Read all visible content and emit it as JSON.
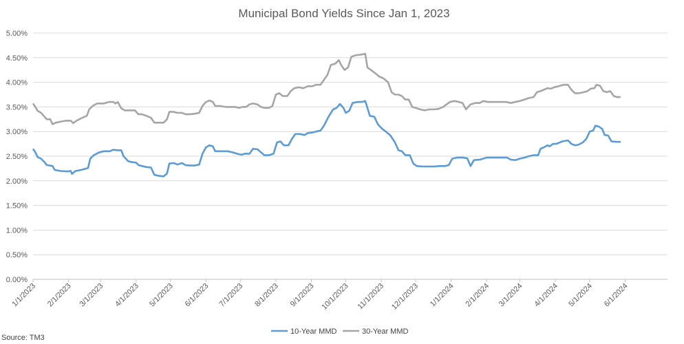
{
  "chart_data": {
    "type": "line",
    "title": "Municipal Bond Yields Since Jan 1, 2023",
    "source": "Source: TM3",
    "xlabel": "",
    "ylabel": "",
    "ylim": [
      0,
      5
    ],
    "y_ticks": [
      "0.00%",
      "0.50%",
      "1.00%",
      "1.50%",
      "2.00%",
      "2.50%",
      "3.00%",
      "3.50%",
      "4.00%",
      "4.50%",
      "5.00%"
    ],
    "x_ticks": [
      "1/1/2023",
      "2/1/2023",
      "3/1/2023",
      "4/1/2023",
      "5/1/2023",
      "6/1/2023",
      "7/1/2023",
      "8/1/2023",
      "9/1/2023",
      "10/1/2023",
      "11/1/2023",
      "12/1/2023",
      "1/1/2024",
      "2/1/2024",
      "3/1/2024",
      "4/1/2024",
      "5/1/2024",
      "6/1/2024"
    ],
    "x_range_days": [
      0,
      544
    ],
    "series": [
      {
        "name": "10-Year MMD",
        "color": "#5b9bd5",
        "points": [
          [
            0,
            2.65
          ],
          [
            2,
            2.58
          ],
          [
            4,
            2.48
          ],
          [
            7,
            2.45
          ],
          [
            10,
            2.38
          ],
          [
            12,
            2.32
          ],
          [
            17,
            2.3
          ],
          [
            19,
            2.22
          ],
          [
            24,
            2.2
          ],
          [
            30,
            2.19
          ],
          [
            33,
            2.2
          ],
          [
            34,
            2.14
          ],
          [
            37,
            2.2
          ],
          [
            42,
            2.22
          ],
          [
            45,
            2.24
          ],
          [
            48,
            2.26
          ],
          [
            50,
            2.45
          ],
          [
            53,
            2.52
          ],
          [
            58,
            2.58
          ],
          [
            62,
            2.6
          ],
          [
            67,
            2.6
          ],
          [
            70,
            2.63
          ],
          [
            74,
            2.62
          ],
          [
            77,
            2.62
          ],
          [
            79,
            2.5
          ],
          [
            83,
            2.4
          ],
          [
            86,
            2.38
          ],
          [
            90,
            2.37
          ],
          [
            92,
            2.32
          ],
          [
            95,
            2.3
          ],
          [
            99,
            2.28
          ],
          [
            103,
            2.27
          ],
          [
            106,
            2.12
          ],
          [
            110,
            2.1
          ],
          [
            114,
            2.09
          ],
          [
            117,
            2.15
          ],
          [
            119,
            2.35
          ],
          [
            123,
            2.36
          ],
          [
            126,
            2.33
          ],
          [
            130,
            2.36
          ],
          [
            133,
            2.32
          ],
          [
            137,
            2.31
          ],
          [
            141,
            2.31
          ],
          [
            145,
            2.33
          ],
          [
            148,
            2.55
          ],
          [
            151,
            2.68
          ],
          [
            154,
            2.72
          ],
          [
            157,
            2.7
          ],
          [
            159,
            2.6
          ],
          [
            163,
            2.6
          ],
          [
            167,
            2.6
          ],
          [
            170,
            2.6
          ],
          [
            174,
            2.58
          ],
          [
            178,
            2.55
          ],
          [
            182,
            2.53
          ],
          [
            185,
            2.55
          ],
          [
            189,
            2.55
          ],
          [
            192,
            2.65
          ],
          [
            196,
            2.64
          ],
          [
            199,
            2.58
          ],
          [
            202,
            2.52
          ],
          [
            206,
            2.52
          ],
          [
            210,
            2.55
          ],
          [
            213,
            2.78
          ],
          [
            216,
            2.8
          ],
          [
            219,
            2.72
          ],
          [
            223,
            2.72
          ],
          [
            226,
            2.85
          ],
          [
            229,
            2.95
          ],
          [
            233,
            2.95
          ],
          [
            237,
            2.93
          ],
          [
            240,
            2.97
          ],
          [
            244,
            2.98
          ],
          [
            247,
            3.0
          ],
          [
            251,
            3.02
          ],
          [
            254,
            3.12
          ],
          [
            258,
            3.3
          ],
          [
            262,
            3.45
          ],
          [
            265,
            3.48
          ],
          [
            268,
            3.56
          ],
          [
            271,
            3.48
          ],
          [
            273,
            3.38
          ],
          [
            276,
            3.42
          ],
          [
            279,
            3.58
          ],
          [
            283,
            3.6
          ],
          [
            287,
            3.6
          ],
          [
            290,
            3.62
          ],
          [
            291,
            3.55
          ],
          [
            294,
            3.32
          ],
          [
            298,
            3.3
          ],
          [
            301,
            3.15
          ],
          [
            305,
            3.05
          ],
          [
            308,
            3.0
          ],
          [
            312,
            2.92
          ],
          [
            316,
            2.78
          ],
          [
            319,
            2.62
          ],
          [
            322,
            2.6
          ],
          [
            325,
            2.52
          ],
          [
            329,
            2.52
          ],
          [
            332,
            2.35
          ],
          [
            335,
            2.3
          ],
          [
            340,
            2.29
          ],
          [
            345,
            2.29
          ],
          [
            350,
            2.29
          ],
          [
            355,
            2.3
          ],
          [
            360,
            2.3
          ],
          [
            363,
            2.32
          ],
          [
            366,
            2.45
          ],
          [
            370,
            2.47
          ],
          [
            375,
            2.47
          ],
          [
            379,
            2.46
          ],
          [
            382,
            2.3
          ],
          [
            385,
            2.42
          ],
          [
            390,
            2.43
          ],
          [
            393,
            2.45
          ],
          [
            396,
            2.47
          ],
          [
            401,
            2.47
          ],
          [
            406,
            2.47
          ],
          [
            411,
            2.47
          ],
          [
            414,
            2.47
          ],
          [
            417,
            2.43
          ],
          [
            421,
            2.42
          ],
          [
            425,
            2.45
          ],
          [
            429,
            2.47
          ],
          [
            433,
            2.5
          ],
          [
            437,
            2.52
          ],
          [
            441,
            2.52
          ],
          [
            443,
            2.65
          ],
          [
            446,
            2.68
          ],
          [
            449,
            2.72
          ],
          [
            451,
            2.7
          ],
          [
            454,
            2.75
          ],
          [
            457,
            2.75
          ],
          [
            459,
            2.77
          ],
          [
            462,
            2.8
          ],
          [
            467,
            2.82
          ],
          [
            470,
            2.75
          ],
          [
            473,
            2.72
          ],
          [
            476,
            2.73
          ],
          [
            480,
            2.78
          ],
          [
            483,
            2.85
          ],
          [
            486,
            3.0
          ],
          [
            489,
            3.02
          ],
          [
            491,
            3.12
          ],
          [
            494,
            3.1
          ],
          [
            497,
            3.05
          ],
          [
            499,
            2.93
          ],
          [
            502,
            2.92
          ],
          [
            505,
            2.8
          ],
          [
            510,
            2.79
          ],
          [
            513,
            2.79
          ]
        ]
      },
      {
        "name": "30-Year MMD",
        "color": "#a5a5a5",
        "points": [
          [
            0,
            3.57
          ],
          [
            2,
            3.5
          ],
          [
            4,
            3.42
          ],
          [
            7,
            3.38
          ],
          [
            10,
            3.3
          ],
          [
            12,
            3.25
          ],
          [
            15,
            3.25
          ],
          [
            17,
            3.15
          ],
          [
            20,
            3.18
          ],
          [
            24,
            3.2
          ],
          [
            29,
            3.22
          ],
          [
            33,
            3.22
          ],
          [
            35,
            3.17
          ],
          [
            38,
            3.22
          ],
          [
            43,
            3.28
          ],
          [
            47,
            3.32
          ],
          [
            49,
            3.45
          ],
          [
            52,
            3.52
          ],
          [
            56,
            3.57
          ],
          [
            62,
            3.57
          ],
          [
            66,
            3.6
          ],
          [
            70,
            3.6
          ],
          [
            72,
            3.57
          ],
          [
            74,
            3.6
          ],
          [
            77,
            3.47
          ],
          [
            80,
            3.43
          ],
          [
            84,
            3.43
          ],
          [
            89,
            3.43
          ],
          [
            92,
            3.35
          ],
          [
            95,
            3.35
          ],
          [
            99,
            3.32
          ],
          [
            103,
            3.28
          ],
          [
            106,
            3.18
          ],
          [
            110,
            3.18
          ],
          [
            114,
            3.18
          ],
          [
            117,
            3.25
          ],
          [
            119,
            3.4
          ],
          [
            123,
            3.4
          ],
          [
            126,
            3.38
          ],
          [
            130,
            3.38
          ],
          [
            133,
            3.35
          ],
          [
            137,
            3.35
          ],
          [
            141,
            3.36
          ],
          [
            145,
            3.38
          ],
          [
            148,
            3.52
          ],
          [
            151,
            3.6
          ],
          [
            154,
            3.63
          ],
          [
            157,
            3.6
          ],
          [
            159,
            3.52
          ],
          [
            163,
            3.52
          ],
          [
            168,
            3.5
          ],
          [
            172,
            3.5
          ],
          [
            176,
            3.5
          ],
          [
            180,
            3.48
          ],
          [
            183,
            3.5
          ],
          [
            186,
            3.5
          ],
          [
            189,
            3.55
          ],
          [
            192,
            3.57
          ],
          [
            196,
            3.55
          ],
          [
            199,
            3.5
          ],
          [
            202,
            3.48
          ],
          [
            206,
            3.48
          ],
          [
            209,
            3.52
          ],
          [
            212,
            3.75
          ],
          [
            215,
            3.78
          ],
          [
            218,
            3.72
          ],
          [
            222,
            3.72
          ],
          [
            225,
            3.82
          ],
          [
            228,
            3.88
          ],
          [
            232,
            3.9
          ],
          [
            236,
            3.88
          ],
          [
            240,
            3.92
          ],
          [
            244,
            3.92
          ],
          [
            247,
            3.95
          ],
          [
            251,
            3.95
          ],
          [
            254,
            4.05
          ],
          [
            257,
            4.15
          ],
          [
            260,
            4.35
          ],
          [
            264,
            4.38
          ],
          [
            267,
            4.45
          ],
          [
            269,
            4.35
          ],
          [
            272,
            4.25
          ],
          [
            275,
            4.3
          ],
          [
            278,
            4.52
          ],
          [
            282,
            4.55
          ],
          [
            286,
            4.56
          ],
          [
            290,
            4.58
          ],
          [
            292,
            4.3
          ],
          [
            295,
            4.25
          ],
          [
            299,
            4.18
          ],
          [
            302,
            4.12
          ],
          [
            306,
            4.08
          ],
          [
            310,
            4.0
          ],
          [
            313,
            3.8
          ],
          [
            316,
            3.75
          ],
          [
            319,
            3.75
          ],
          [
            322,
            3.72
          ],
          [
            325,
            3.65
          ],
          [
            328,
            3.65
          ],
          [
            331,
            3.5
          ],
          [
            334,
            3.48
          ],
          [
            338,
            3.45
          ],
          [
            342,
            3.43
          ],
          [
            346,
            3.45
          ],
          [
            350,
            3.45
          ],
          [
            354,
            3.46
          ],
          [
            358,
            3.5
          ],
          [
            361,
            3.55
          ],
          [
            364,
            3.6
          ],
          [
            368,
            3.62
          ],
          [
            372,
            3.6
          ],
          [
            375,
            3.58
          ],
          [
            378,
            3.45
          ],
          [
            382,
            3.55
          ],
          [
            386,
            3.58
          ],
          [
            390,
            3.58
          ],
          [
            393,
            3.62
          ],
          [
            397,
            3.6
          ],
          [
            401,
            3.6
          ],
          [
            405,
            3.6
          ],
          [
            409,
            3.6
          ],
          [
            413,
            3.6
          ],
          [
            417,
            3.58
          ],
          [
            421,
            3.6
          ],
          [
            425,
            3.62
          ],
          [
            429,
            3.65
          ],
          [
            433,
            3.68
          ],
          [
            437,
            3.7
          ],
          [
            440,
            3.8
          ],
          [
            443,
            3.82
          ],
          [
            446,
            3.85
          ],
          [
            449,
            3.88
          ],
          [
            452,
            3.87
          ],
          [
            455,
            3.9
          ],
          [
            459,
            3.92
          ],
          [
            463,
            3.95
          ],
          [
            467,
            3.95
          ],
          [
            470,
            3.85
          ],
          [
            473,
            3.78
          ],
          [
            477,
            3.78
          ],
          [
            481,
            3.8
          ],
          [
            484,
            3.82
          ],
          [
            487,
            3.87
          ],
          [
            490,
            3.88
          ],
          [
            492,
            3.95
          ],
          [
            495,
            3.93
          ],
          [
            498,
            3.82
          ],
          [
            501,
            3.8
          ],
          [
            504,
            3.82
          ],
          [
            507,
            3.72
          ],
          [
            510,
            3.7
          ],
          [
            513,
            3.7
          ]
        ]
      }
    ],
    "legend_position": "bottom-center",
    "grid": true
  }
}
